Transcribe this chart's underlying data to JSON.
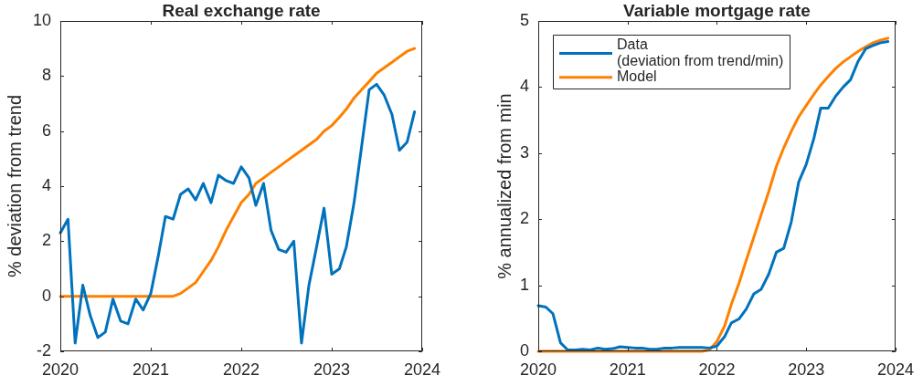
{
  "chart_data": [
    {
      "type": "line",
      "title": "Real exchange rate",
      "ylabel": "% deviation from trend",
      "x": [
        "2020-01",
        "2020-02",
        "2020-03",
        "2020-04",
        "2020-05",
        "2020-06",
        "2020-07",
        "2020-08",
        "2020-09",
        "2020-10",
        "2020-11",
        "2020-12",
        "2021-01",
        "2021-02",
        "2021-03",
        "2021-04",
        "2021-05",
        "2021-06",
        "2021-07",
        "2021-08",
        "2021-09",
        "2021-10",
        "2021-11",
        "2021-12",
        "2022-01",
        "2022-02",
        "2022-03",
        "2022-04",
        "2022-05",
        "2022-06",
        "2022-07",
        "2022-08",
        "2022-09",
        "2022-10",
        "2022-11",
        "2022-12",
        "2023-01",
        "2023-02",
        "2023-03",
        "2023-04",
        "2023-05",
        "2023-06",
        "2023-07",
        "2023-08",
        "2023-09",
        "2023-10",
        "2023-11",
        "2023-12"
      ],
      "series": [
        {
          "color": "#0072bd",
          "values": [
            2.3,
            2.8,
            -1.7,
            0.4,
            -0.7,
            -1.5,
            -1.3,
            -0.1,
            -0.9,
            -1.0,
            -0.1,
            -0.5,
            0.1,
            1.5,
            2.9,
            2.8,
            3.7,
            3.9,
            3.5,
            4.1,
            3.4,
            4.4,
            4.2,
            4.1,
            4.7,
            4.3,
            3.3,
            4.1,
            2.4,
            1.7,
            1.6,
            2.0,
            -1.7,
            0.4,
            1.8,
            3.2,
            0.8,
            1.0,
            1.8,
            3.4,
            5.4,
            7.5,
            7.7,
            7.3,
            6.6,
            5.3,
            5.6,
            6.7
          ]
        },
        {
          "color": "#ff8000",
          "values": [
            0,
            0,
            0,
            0,
            0,
            0,
            0,
            0,
            0,
            0,
            0,
            0,
            0,
            0,
            0,
            0,
            0.1,
            0.3,
            0.5,
            0.9,
            1.3,
            1.8,
            2.4,
            2.9,
            3.4,
            3.7,
            4.1,
            4.3,
            4.5,
            4.7,
            4.9,
            5.1,
            5.3,
            5.5,
            5.7,
            6.0,
            6.2,
            6.5,
            6.8,
            7.2,
            7.5,
            7.8,
            8.1,
            8.3,
            8.5,
            8.7,
            8.9,
            9.0
          ]
        }
      ],
      "xlim": [
        "2020",
        "2024"
      ],
      "xticks": [
        "2020",
        "2021",
        "2022",
        "2023",
        "2024"
      ],
      "ylim": [
        -2,
        10
      ],
      "yticks": [
        -2,
        0,
        2,
        4,
        6,
        8,
        10
      ],
      "grid": false,
      "legend": false,
      "marker": "none"
    },
    {
      "type": "line",
      "title": "Variable mortgage rate",
      "ylabel": "% annualized from min",
      "x": [
        "2020-01",
        "2020-02",
        "2020-03",
        "2020-04",
        "2020-05",
        "2020-06",
        "2020-07",
        "2020-08",
        "2020-09",
        "2020-10",
        "2020-11",
        "2020-12",
        "2021-01",
        "2021-02",
        "2021-03",
        "2021-04",
        "2021-05",
        "2021-06",
        "2021-07",
        "2021-08",
        "2021-09",
        "2021-10",
        "2021-11",
        "2021-12",
        "2022-01",
        "2022-02",
        "2022-03",
        "2022-04",
        "2022-05",
        "2022-06",
        "2022-07",
        "2022-08",
        "2022-09",
        "2022-10",
        "2022-11",
        "2022-12",
        "2023-01",
        "2023-02",
        "2023-03",
        "2023-04",
        "2023-05",
        "2023-06",
        "2023-07",
        "2023-08",
        "2023-09",
        "2023-10",
        "2023-11",
        "2023-12"
      ],
      "series": [
        {
          "name": "Data\n(deviation from trend/min)",
          "color": "#0072bd",
          "values": [
            0.69,
            0.67,
            0.57,
            0.13,
            0.02,
            0.02,
            0.03,
            0.02,
            0.05,
            0.03,
            0.04,
            0.07,
            0.06,
            0.05,
            0.05,
            0.03,
            0.03,
            0.05,
            0.05,
            0.06,
            0.06,
            0.06,
            0.06,
            0.05,
            0.08,
            0.22,
            0.43,
            0.49,
            0.64,
            0.87,
            0.94,
            1.17,
            1.5,
            1.56,
            1.96,
            2.56,
            2.83,
            3.22,
            3.68,
            3.68,
            3.86,
            4.0,
            4.11,
            4.39,
            4.58,
            4.63,
            4.67,
            4.69
          ]
        },
        {
          "name": "Model",
          "color": "#ff8000",
          "values": [
            0,
            0,
            0,
            0,
            0,
            0,
            0,
            0,
            0,
            0,
            0,
            0,
            0,
            0,
            0,
            0,
            0,
            0,
            0,
            0,
            0,
            0,
            0,
            0.02,
            0.15,
            0.38,
            0.71,
            1.03,
            1.38,
            1.73,
            2.07,
            2.42,
            2.8,
            3.08,
            3.33,
            3.55,
            3.72,
            3.89,
            4.03,
            4.16,
            4.28,
            4.38,
            4.46,
            4.54,
            4.61,
            4.67,
            4.71,
            4.74
          ]
        }
      ],
      "xlim": [
        "2020",
        "2024"
      ],
      "xticks": [
        "2020",
        "2021",
        "2022",
        "2023",
        "2024"
      ],
      "ylim": [
        0,
        5
      ],
      "yticks": [
        0,
        1,
        2,
        3,
        4,
        5
      ],
      "grid": false,
      "legend": "top left",
      "marker": "none"
    }
  ]
}
